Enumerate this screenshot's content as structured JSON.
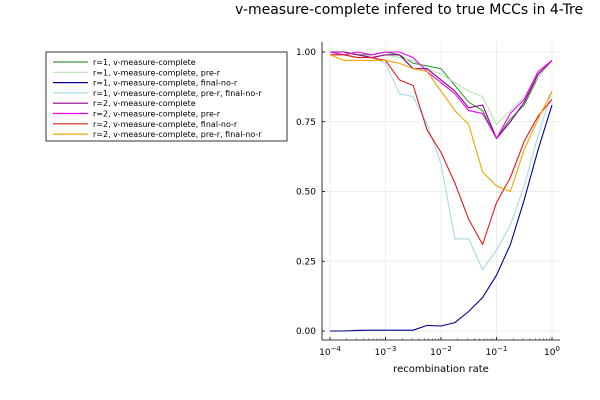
{
  "chart_data": {
    "type": "line",
    "title": "v-measure-complete infered to true MCCs in 4-Tre",
    "xlabel": "recombination rate",
    "ylabel": "",
    "xscale": "log10",
    "xlim": [
      0.0001,
      1
    ],
    "ylim": [
      0,
      1
    ],
    "xticks": [
      {
        "value": 0.0001,
        "base": "10",
        "exp": "−4"
      },
      {
        "value": 0.001,
        "base": "10",
        "exp": "−3"
      },
      {
        "value": 0.01,
        "base": "10",
        "exp": "−2"
      },
      {
        "value": 0.1,
        "base": "10",
        "exp": "−1"
      },
      {
        "value": 1,
        "base": "10",
        "exp": "0"
      }
    ],
    "yticks": [
      {
        "value": 0,
        "label": "0.00"
      },
      {
        "value": 0.25,
        "label": "0.25"
      },
      {
        "value": 0.5,
        "label": "0.50"
      },
      {
        "value": 0.75,
        "label": "0.75"
      },
      {
        "value": 1,
        "label": "1.00"
      }
    ],
    "grid": true,
    "legend_position": "outside-left",
    "x": [
      0.0001,
      0.000178,
      0.000316,
      0.000562,
      0.001,
      0.00178,
      0.00316,
      0.00562,
      0.01,
      0.0178,
      0.0316,
      0.0562,
      0.1,
      0.178,
      0.316,
      0.562,
      1
    ],
    "series": [
      {
        "name": "r=1, v-measure-complete",
        "color": "#3a9a3a",
        "values": [
          1.0,
          1.0,
          0.99,
          0.99,
          1.0,
          0.99,
          0.96,
          0.95,
          0.94,
          0.88,
          0.82,
          0.79,
          0.69,
          0.76,
          0.81,
          0.91,
          0.97
        ]
      },
      {
        "name": "r=1, v-measure-complete, pre-r",
        "color": "#b7e4b1",
        "values": [
          0.99,
          0.99,
          0.99,
          0.98,
          0.99,
          0.98,
          0.97,
          0.94,
          0.92,
          0.89,
          0.86,
          0.84,
          0.74,
          0.79,
          0.84,
          0.91,
          0.97
        ]
      },
      {
        "name": "r=1, v-measure-complete, final-no-r",
        "color": "#00008b",
        "values": [
          0.0,
          0.0,
          0.002,
          0.003,
          0.003,
          0.003,
          0.003,
          0.02,
          0.018,
          0.03,
          0.07,
          0.12,
          0.2,
          0.31,
          0.47,
          0.65,
          0.81
        ]
      },
      {
        "name": "r=1, v-measure-complete, pre-r, final-no-r",
        "color": "#a8d8ea",
        "values": [
          0.99,
          0.99,
          0.98,
          0.98,
          0.96,
          0.85,
          0.84,
          0.74,
          0.6,
          0.33,
          0.33,
          0.22,
          0.29,
          0.38,
          0.52,
          0.7,
          0.86
        ]
      },
      {
        "name": "r=2, v-measure-complete",
        "color": "#8b008b",
        "values": [
          1.0,
          1.0,
          0.99,
          0.98,
          0.99,
          0.99,
          0.94,
          0.94,
          0.9,
          0.86,
          0.8,
          0.81,
          0.69,
          0.75,
          0.82,
          0.92,
          0.97
        ]
      },
      {
        "name": "r=2, v-measure-complete, pre-r",
        "color": "#ee00ee",
        "values": [
          1.0,
          0.99,
          1.0,
          0.99,
          1.0,
          1.0,
          0.98,
          0.93,
          0.89,
          0.85,
          0.79,
          0.78,
          0.69,
          0.78,
          0.83,
          0.93,
          0.97
        ]
      },
      {
        "name": "r=2, v-measure-complete, final-no-r",
        "color": "#e41a1c",
        "values": [
          0.99,
          0.99,
          0.98,
          0.98,
          0.97,
          0.9,
          0.88,
          0.72,
          0.64,
          0.53,
          0.4,
          0.31,
          0.46,
          0.55,
          0.68,
          0.77,
          0.83
        ]
      },
      {
        "name": "r=2, v-measure-complete, pre-r, final-no-r",
        "color": "#f5a300",
        "values": [
          0.99,
          0.97,
          0.97,
          0.97,
          0.97,
          0.96,
          0.94,
          0.93,
          0.86,
          0.79,
          0.74,
          0.57,
          0.52,
          0.5,
          0.65,
          0.76,
          0.86
        ]
      }
    ]
  }
}
